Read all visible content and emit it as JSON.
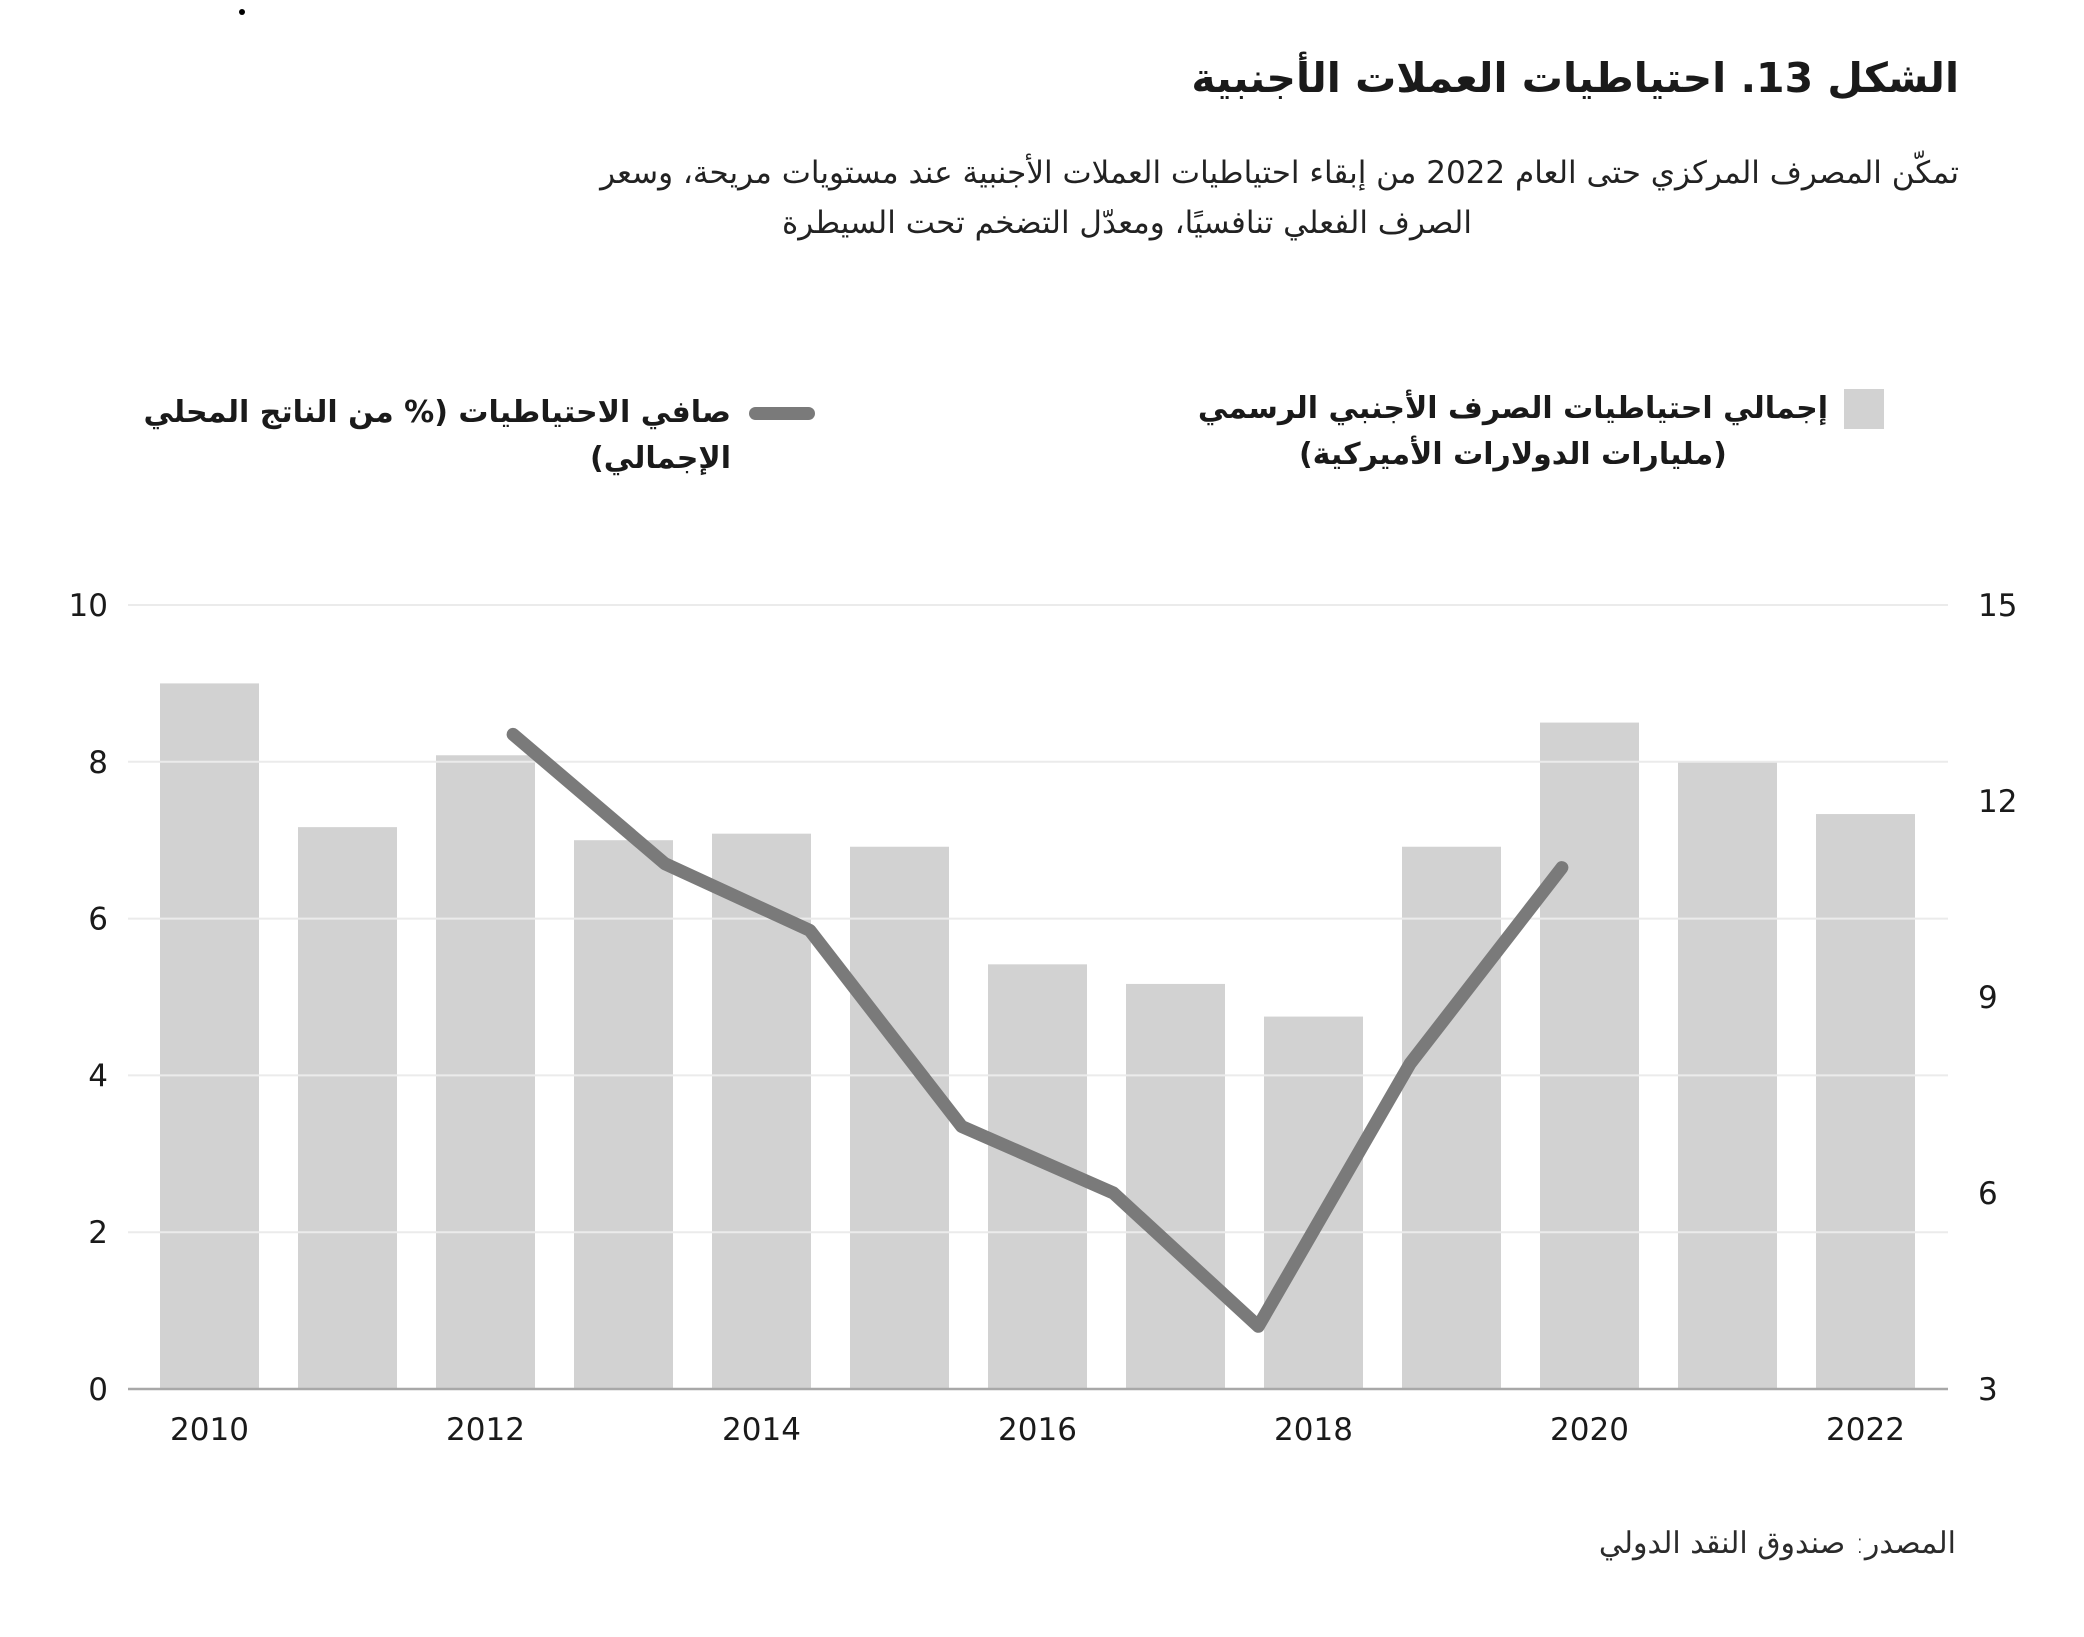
{
  "header": {
    "title": "الشكل 13. احتياطيات العملات الأجنبية",
    "subtitle_line1": "تمكّن المصرف المركزي حتى العام 2022 من إبقاء احتياطيات العملات الأجنبية عند مستويات مريحة، وسعر",
    "subtitle_line2": "الصرف الفعلي تنافسيًا، ومعدّل التضخم تحت السيطرة"
  },
  "legend": {
    "bars": {
      "label_line1": "إجمالي احتياطيات الصرف الأجنبي الرسمي",
      "label_line2": "(مليارات الدولارات الأميركية)",
      "swatch_color": "#d2d2d2"
    },
    "line": {
      "label": "صافي الاحتياطيات (% من الناتج المحلي الإجمالي)",
      "swatch_color": "#7a7a7a"
    }
  },
  "chart_data": {
    "type": "bar+line",
    "title": "الشكل 13. احتياطيات العملات الأجنبية",
    "categories": [
      2010,
      2011,
      2012,
      2013,
      2014,
      2015,
      2016,
      2017,
      2018,
      2019,
      2020,
      2021,
      2022
    ],
    "series": [
      {
        "name": "إجمالي احتياطيات الصرف الأجنبي الرسمي (مليارات الدولارات الأميركية)",
        "type": "bar",
        "axis": "right",
        "values": [
          13.8,
          11.6,
          12.7,
          11.4,
          11.5,
          11.3,
          9.5,
          9.2,
          8.7,
          11.3,
          13.2,
          12.6,
          11.8
        ]
      },
      {
        "name": "صافي الاحتياطيات (% من الناتج المحلي الإجمالي)",
        "type": "line",
        "axis": "left",
        "x": [
          2012.2,
          2013.3,
          2014.35,
          2015.45,
          2016.55,
          2017.6,
          2018.7,
          2019.8
        ],
        "values": [
          8.35,
          6.7,
          5.85,
          3.35,
          2.5,
          0.8,
          4.15,
          6.65
        ]
      }
    ],
    "left_axis": {
      "range": [
        0,
        10
      ],
      "ticks": [
        0,
        2,
        4,
        6,
        8,
        10
      ]
    },
    "right_axis": {
      "range": [
        3,
        15
      ],
      "ticks": [
        3,
        6,
        9,
        12,
        15
      ]
    },
    "x_axis": {
      "tick_labels": [
        "2010",
        "2012",
        "2014",
        "2016",
        "2018",
        "2020",
        "2022"
      ]
    },
    "grid": "horizontal",
    "legend_position": "top"
  },
  "footer": {
    "source": "المصدر: صندوق النقد الدولي"
  },
  "colors": {
    "bar": "#d2d2d2",
    "line": "#7a7a7a",
    "grid": "#ebebeb",
    "axis": "#a8a8a8",
    "tick_text": "#1a1a1a"
  }
}
